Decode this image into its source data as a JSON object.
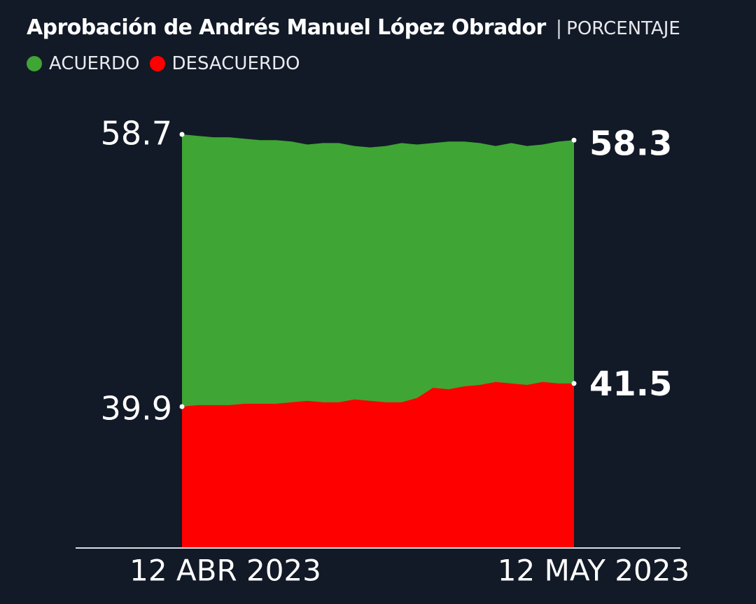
{
  "header": {
    "title": "Aprobación de Andrés Manuel López Obrador",
    "separator": "|",
    "subtitle": "PORCENTAJE"
  },
  "legend": {
    "items": [
      {
        "label": "ACUERDO",
        "color": "#3fa535"
      },
      {
        "label": "DESACUERDO",
        "color": "#ff0000"
      }
    ]
  },
  "colors": {
    "background": "#121a27",
    "acuerdo": "#3fa535",
    "desacuerdo": "#ff0000",
    "axis": "#d9dce2"
  },
  "chart_data": {
    "type": "area",
    "stacked": true,
    "x_start_label": "12 ABR 2023",
    "x_end_label": "12 MAY 2023",
    "start_labels": {
      "acuerdo": "58.7",
      "desacuerdo": "39.9"
    },
    "end_labels": {
      "acuerdo": "58.3",
      "desacuerdo": "41.5"
    },
    "ylim": [
      0,
      100
    ],
    "series": [
      {
        "name": "ACUERDO",
        "values": [
          58.7,
          58.6,
          58.5,
          58.5,
          58.4,
          58.3,
          58.3,
          58.2,
          58.0,
          58.1,
          58.1,
          57.9,
          57.8,
          57.9,
          58.1,
          58.0,
          58.1,
          58.2,
          58.2,
          58.1,
          57.9,
          58.1,
          57.9,
          58.0,
          58.2,
          58.3
        ]
      },
      {
        "name": "DESACUERDO",
        "values": [
          39.9,
          40.0,
          40.0,
          40.0,
          40.1,
          40.1,
          40.1,
          40.2,
          40.3,
          40.2,
          40.2,
          40.4,
          40.3,
          40.2,
          40.2,
          40.5,
          41.2,
          41.1,
          41.3,
          41.4,
          41.6,
          41.5,
          41.4,
          41.6,
          41.5,
          41.5
        ]
      }
    ]
  }
}
